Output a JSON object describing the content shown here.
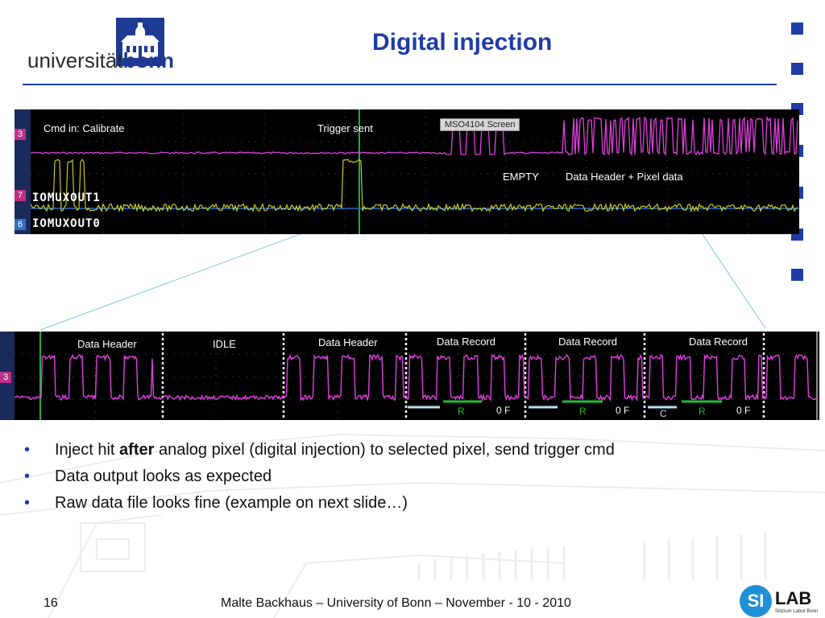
{
  "logo": {
    "text_regular": "universität",
    "text_bold": "bonn"
  },
  "title": "Digital injection",
  "scope_top": {
    "annotations": {
      "cmd": "Cmd in: Calibrate",
      "trigger": "Trigger sent",
      "empty": "EMPTY",
      "header_pixel": "Data Header + Pixel data"
    },
    "screen_label": "MSO4104 Screen",
    "channel_1": "IOMUXOUT1",
    "channel_0": "IOMUXOUT0",
    "marker_3": "3",
    "marker_7": "7",
    "marker_6": "6"
  },
  "scope_zoom": {
    "segments": [
      "Data Header",
      "IDLE",
      "Data Header",
      "Data Record",
      "Data Record",
      "Data Record"
    ],
    "marker_3": "3",
    "field_labels": {
      "r1": "R",
      "of1": "0  F",
      "r2": "R",
      "of2": "0  F",
      "c3": "C",
      "r3": "R",
      "of3": "0  F"
    }
  },
  "bullets": {
    "b1_pre": "Inject hit ",
    "b1_bold": "after",
    "b1_post": " analog pixel (digital injection) to selected pixel, send trigger cmd",
    "b2": "Data output looks as expected",
    "b3": "Raw data file looks fine (example on next slide…)",
    "marker": "•"
  },
  "footer": {
    "page": "16",
    "author": "Malte Backhaus   –   University of Bonn  –   November - 10 - 2010"
  },
  "silab": {
    "si": "SI",
    "lab": "LAB",
    "sub": "Silizium Labor Bonn"
  },
  "colors": {
    "accent": "#1f3ca6",
    "magenta": "#e040e0",
    "yellow": "#d8d820",
    "green": "#22cc44"
  }
}
